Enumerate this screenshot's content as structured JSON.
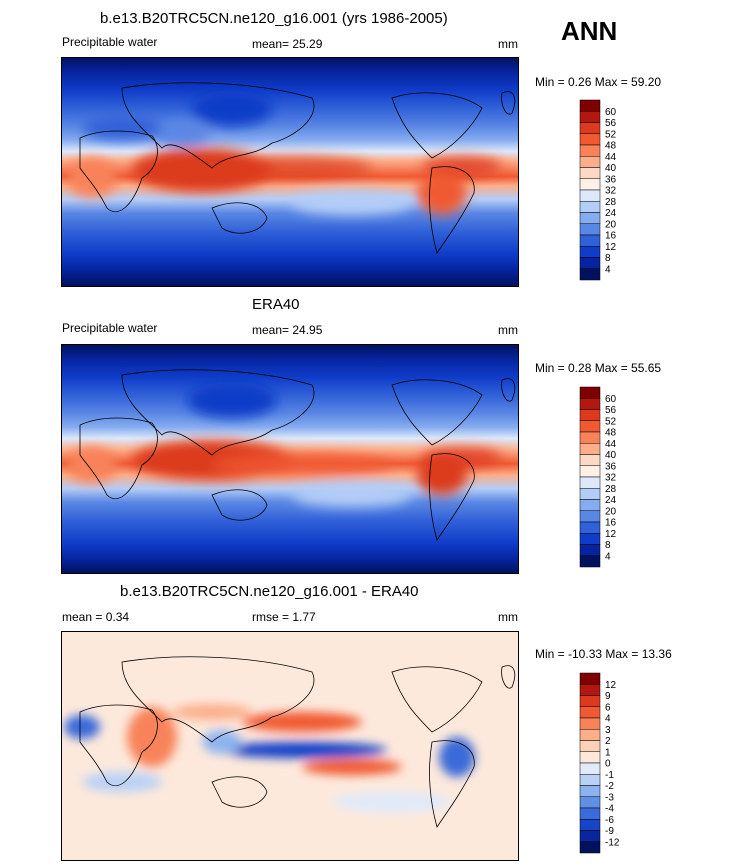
{
  "season": "ANN",
  "panels": [
    {
      "title": "b.e13.B20TRC5CN.ne120_g16.001 (yrs 1986-2005)",
      "left_label": "Precipitable water",
      "center_label": "mean=  25.29",
      "units": "mm",
      "minmax": "Min =   0.26 Max =  59.20",
      "colorbar_ticks": [
        "60",
        "56",
        "52",
        "48",
        "44",
        "40",
        "36",
        "32",
        "28",
        "24",
        "20",
        "16",
        "12",
        "8",
        "4"
      ]
    },
    {
      "title": "ERA40",
      "left_label": "Precipitable water",
      "center_label": "mean=  24.95",
      "units": "mm",
      "minmax": "Min =   0.28 Max =  55.65",
      "colorbar_ticks": [
        "60",
        "56",
        "52",
        "48",
        "44",
        "40",
        "36",
        "32",
        "28",
        "24",
        "20",
        "16",
        "12",
        "8",
        "4"
      ]
    },
    {
      "title": "b.e13.B20TRC5CN.ne120_g16.001 - ERA40",
      "left_label": "mean =   0.34",
      "center_label": "rmse =   1.77",
      "units": "mm",
      "minmax": "Min = -10.33 Max =  13.36",
      "colorbar_ticks": [
        "12",
        "9",
        "6",
        "4",
        "3",
        "2",
        "1",
        "0",
        "-1",
        "-2",
        "-3",
        "-4",
        "-6",
        "-9",
        "-12"
      ]
    }
  ],
  "colors": {
    "abs_scale": [
      "#7f0000",
      "#b2180f",
      "#dc3a1e",
      "#f05a32",
      "#f8835a",
      "#fcae8a",
      "#fdd8c2",
      "#fdf0e6",
      "#dde9fb",
      "#b4cdf7",
      "#86acf0",
      "#5a87e4",
      "#3161d8",
      "#0f3cc8",
      "#06249f",
      "#00125e"
    ],
    "diff_scale": [
      "#7f0000",
      "#b2180f",
      "#dc3a1e",
      "#f05a32",
      "#f8835a",
      "#fcae8a",
      "#fdd0b8",
      "#fde9dc",
      "#dfeafb",
      "#bad1f6",
      "#8db3ef",
      "#6090e5",
      "#3a6bd9",
      "#1845c6",
      "#08279c",
      "#00125e"
    ]
  },
  "chart_data": [
    {
      "type": "heatmap",
      "title": "b.e13.B20TRC5CN.ne120_g16.001 (yrs 1986-2005)",
      "variable": "Precipitable water",
      "units": "mm",
      "mean": 25.29,
      "min": 0.26,
      "max": 59.2,
      "contour_levels": [
        4,
        8,
        12,
        16,
        20,
        24,
        28,
        32,
        36,
        40,
        44,
        48,
        52,
        56,
        60
      ],
      "projection": "global cylindrical equidistant, centered on 180"
    },
    {
      "type": "heatmap",
      "title": "ERA40",
      "variable": "Precipitable water",
      "units": "mm",
      "mean": 24.95,
      "min": 0.28,
      "max": 55.65,
      "contour_levels": [
        4,
        8,
        12,
        16,
        20,
        24,
        28,
        32,
        36,
        40,
        44,
        48,
        52,
        56,
        60
      ],
      "projection": "global cylindrical equidistant, centered on 180"
    },
    {
      "type": "heatmap",
      "title": "b.e13.B20TRC5CN.ne120_g16.001 - ERA40",
      "units": "mm",
      "mean": 0.34,
      "rmse": 1.77,
      "min": -10.33,
      "max": 13.36,
      "contour_levels": [
        -12,
        -9,
        -6,
        -4,
        -3,
        -2,
        -1,
        0,
        1,
        2,
        3,
        4,
        6,
        9,
        12
      ],
      "projection": "global cylindrical equidistant, centered on 180"
    }
  ]
}
